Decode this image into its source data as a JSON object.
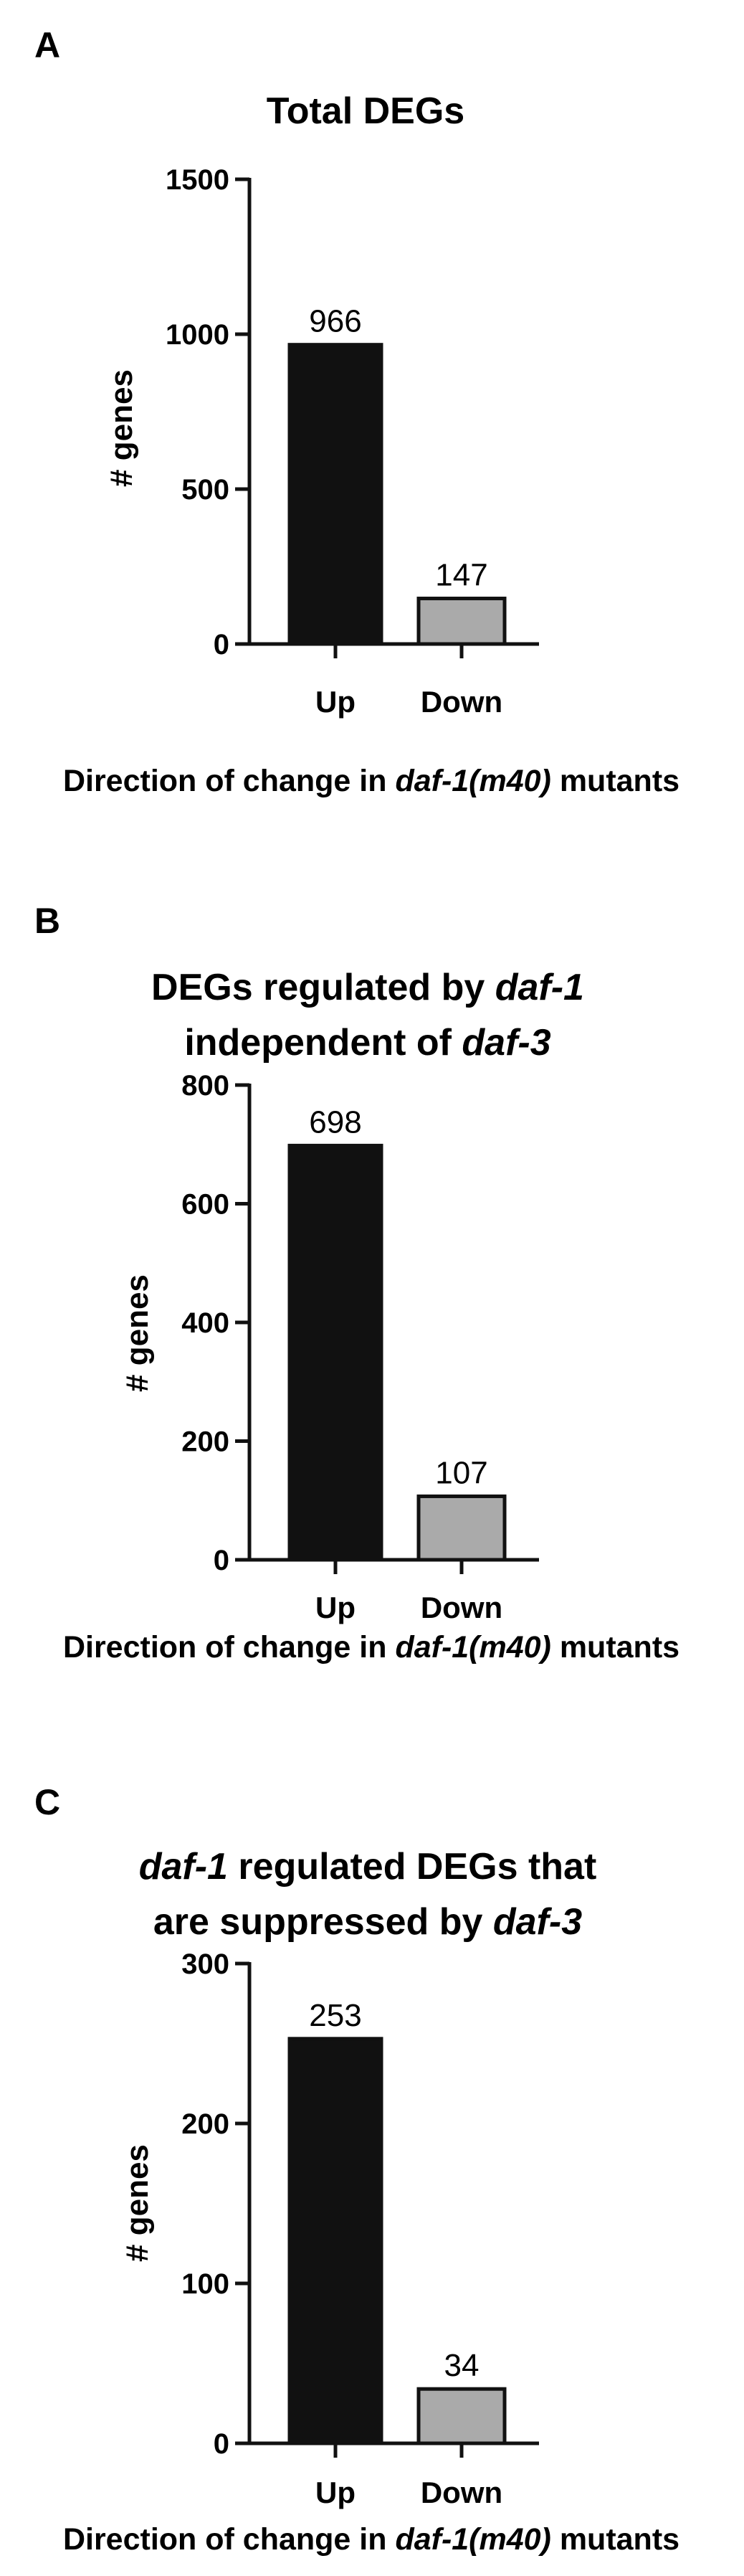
{
  "chart_data": [
    {
      "type": "bar",
      "panel": "A",
      "title": "Total DEGs",
      "categories": [
        "Up",
        "Down"
      ],
      "values": [
        966,
        147
      ],
      "data_labels": [
        "966",
        "147"
      ],
      "colors": [
        "#111111",
        "#aaaaaa"
      ],
      "ylabel": "# genes",
      "xlabel": "Direction of change in daf-1(m40) mutants",
      "yticks": [
        "0",
        "500",
        "1000",
        "1500"
      ],
      "ylim": [
        0,
        1500
      ]
    },
    {
      "type": "bar",
      "panel": "B",
      "title": "DEGs regulated by daf-1 independent of daf-3",
      "categories": [
        "Up",
        "Down"
      ],
      "values": [
        698,
        107
      ],
      "data_labels": [
        "698",
        "107"
      ],
      "colors": [
        "#111111",
        "#aaaaaa"
      ],
      "ylabel": "# genes",
      "xlabel": "Direction of change in daf-1(m40) mutants",
      "yticks": [
        "0",
        "200",
        "400",
        "600",
        "800"
      ],
      "ylim": [
        0,
        800
      ]
    },
    {
      "type": "bar",
      "panel": "C",
      "title": "daf-1 regulated DEGs that are suppressed by daf-3",
      "categories": [
        "Up",
        "Down"
      ],
      "values": [
        253,
        34
      ],
      "data_labels": [
        "253",
        "34"
      ],
      "colors": [
        "#111111",
        "#aaaaaa"
      ],
      "ylabel": "# genes",
      "xlabel": "Direction of change in daf-1(m40) mutants",
      "yticks": [
        "0",
        "100",
        "200",
        "300"
      ],
      "ylim": [
        0,
        300
      ]
    }
  ]
}
